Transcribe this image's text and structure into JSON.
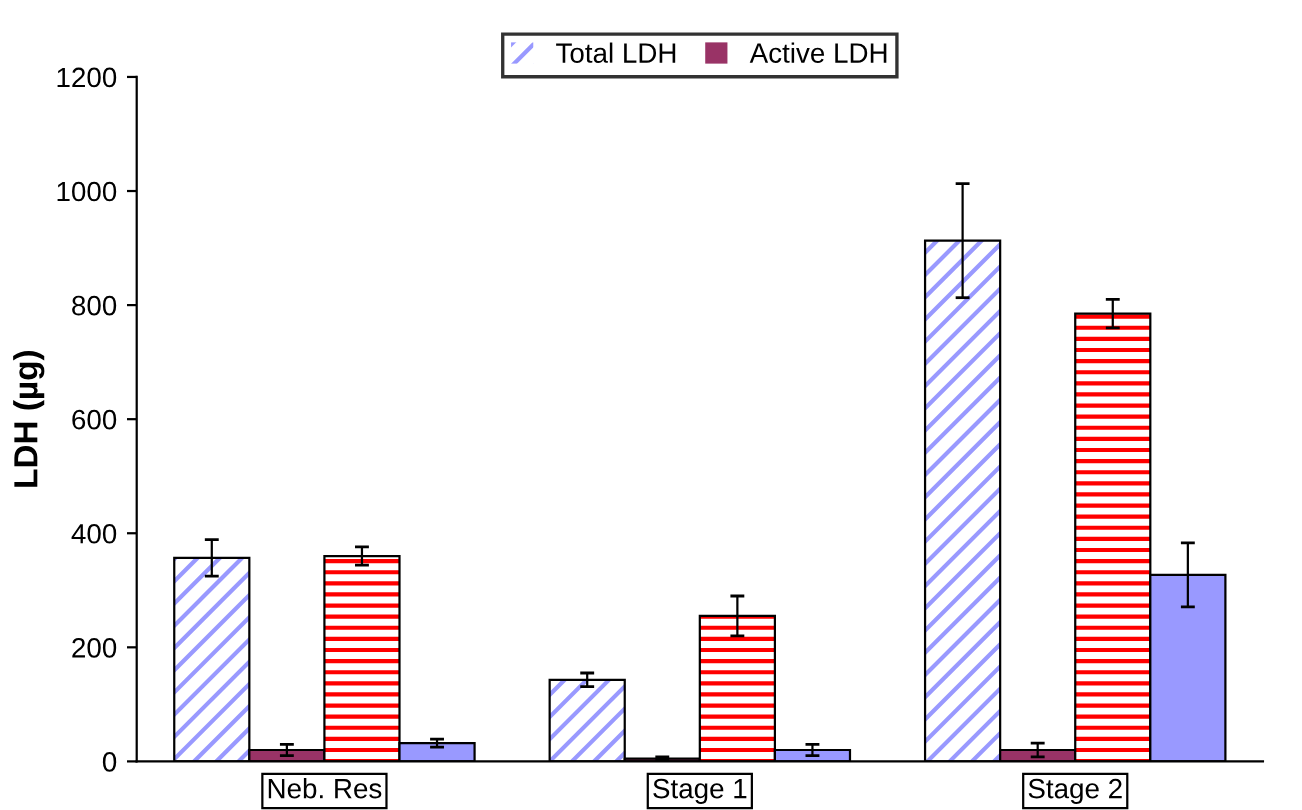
{
  "chart_data": {
    "type": "bar",
    "ylabel": "LDH (µg)",
    "categories": [
      "Neb. Res",
      "Stage 1",
      "Stage 2"
    ],
    "series": [
      {
        "name": "Total LDH",
        "color": "#9999ff",
        "values": [
          357,
          143,
          913
        ],
        "errors": [
          32,
          12,
          100
        ]
      },
      {
        "name": "Active LDH",
        "color": "#993366",
        "values": [
          20,
          5,
          20
        ],
        "errors": [
          10,
          3,
          12
        ]
      },
      {
        "color": "#ff0000",
        "values": [
          360,
          255,
          785
        ],
        "errors": [
          16,
          35,
          25
        ]
      },
      {
        "color": "#9999ff",
        "values": [
          32,
          20,
          327
        ],
        "errors": [
          7,
          10,
          56
        ]
      }
    ],
    "ylim": [
      0,
      1200
    ],
    "yticks": [
      0,
      200,
      400,
      600,
      800,
      1000,
      1200
    ],
    "grid": false,
    "legend": "top"
  }
}
